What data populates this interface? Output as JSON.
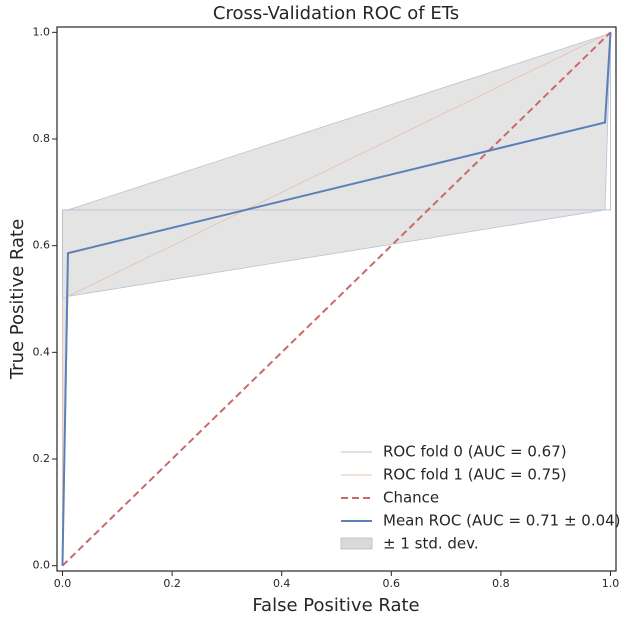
{
  "chart_data": {
    "type": "line",
    "title": "Cross-Validation ROC of ETs",
    "x_label": "False Positive Rate",
    "y_label": "True Positive Rate",
    "xlim": [
      -0.01,
      1.01
    ],
    "ylim": [
      -0.01,
      1.01
    ],
    "xticks": [
      {
        "value": 0,
        "label": "0.0"
      },
      {
        "value": 0.2,
        "label": "0.2"
      },
      {
        "value": 0.4,
        "label": "0.4"
      },
      {
        "value": 0.6,
        "label": "0.6"
      },
      {
        "value": 0.8,
        "label": "0.8"
      },
      {
        "value": 1,
        "label": "1.0"
      }
    ],
    "yticks": [
      {
        "value": 0,
        "label": "0.0"
      },
      {
        "value": 0.2,
        "label": "0.2"
      },
      {
        "value": 0.4,
        "label": "0.4"
      },
      {
        "value": 0.6,
        "label": "0.6"
      },
      {
        "value": 0.8,
        "label": "0.8"
      },
      {
        "value": 1,
        "label": "1.0"
      }
    ],
    "legend": "lower right",
    "grid": false,
    "series": [
      {
        "name": "ROC fold 0 (AUC = 0.67)",
        "color": "#b9c3cf",
        "style": "solid",
        "width": 1,
        "x": [
          0,
          0,
          1,
          1
        ],
        "values": [
          0,
          0.667,
          0.667,
          1
        ]
      },
      {
        "name": "ROC fold 1 (AUC = 0.75)",
        "color": "#e6c6b6",
        "style": "solid",
        "width": 1,
        "x": [
          0,
          0,
          1
        ],
        "values": [
          0,
          0.5,
          1
        ]
      },
      {
        "name": "Chance",
        "color": "#c96a6a",
        "style": "dashed",
        "width": 2,
        "x": [
          0,
          1
        ],
        "values": [
          0,
          1
        ]
      },
      {
        "name": "Mean ROC (AUC = 0.71 ± 0.04)",
        "color": "#5c7fb8",
        "style": "solid",
        "width": 2,
        "x": [
          0,
          0.01,
          0.99,
          1
        ],
        "values": [
          0,
          0.586,
          0.831,
          1
        ]
      },
      {
        "name": "± 1 std. dev.",
        "color": "#d9d9d9",
        "style": "band",
        "x": [
          0,
          0.01,
          0.99,
          1
        ],
        "upper": [
          0.667,
          0.667,
          0.995,
          1
        ],
        "lower": [
          0,
          0.505,
          0.667,
          1
        ]
      }
    ]
  }
}
